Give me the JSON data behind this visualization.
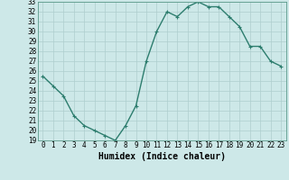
{
  "x": [
    0,
    1,
    2,
    3,
    4,
    5,
    6,
    7,
    8,
    9,
    10,
    11,
    12,
    13,
    14,
    15,
    16,
    17,
    18,
    19,
    20,
    21,
    22,
    23
  ],
  "y": [
    25.5,
    24.5,
    23.5,
    21.5,
    20.5,
    20.0,
    19.5,
    19.0,
    20.5,
    22.5,
    27.0,
    30.0,
    32.0,
    31.5,
    32.5,
    33.0,
    32.5,
    32.5,
    31.5,
    30.5,
    28.5,
    28.5,
    27.0,
    26.5
  ],
  "xlabel": "Humidex (Indice chaleur)",
  "ylim": [
    19,
    33
  ],
  "xlim": [
    -0.5,
    23.5
  ],
  "yticks": [
    19,
    20,
    21,
    22,
    23,
    24,
    25,
    26,
    27,
    28,
    29,
    30,
    31,
    32,
    33
  ],
  "xticks": [
    0,
    1,
    2,
    3,
    4,
    5,
    6,
    7,
    8,
    9,
    10,
    11,
    12,
    13,
    14,
    15,
    16,
    17,
    18,
    19,
    20,
    21,
    22,
    23
  ],
  "line_color": "#2d7d6e",
  "bg_color": "#cde8e8",
  "grid_color": "#aecece",
  "xlabel_fontsize": 7,
  "tick_fontsize": 5.5,
  "marker_size": 2.5,
  "line_width": 1.0
}
